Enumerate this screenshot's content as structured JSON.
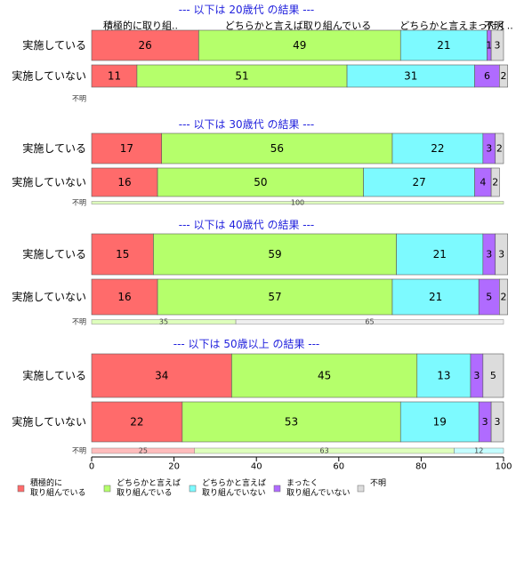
{
  "chart_data": {
    "type": "bar",
    "orientation": "horizontal",
    "stacked": true,
    "xlim": [
      0,
      100
    ],
    "x_ticks": [
      "0",
      "20",
      "40",
      "60",
      "80",
      "100"
    ],
    "series_names": [
      "積極的に取り組んでいる",
      "どちらかと言えば取り組んでいる",
      "どちらかと言えば取り組んでいない",
      "まったく取り組んでいない",
      "不明"
    ],
    "series_colors": [
      "#ff6b6b",
      "#b5ff6b",
      "#7dfaff",
      "#b06bff",
      "#dcdcdc"
    ],
    "top_labels": [
      "積極的に取り組..",
      "どちらかと言えば取り組んでいる",
      "どちらかと言えまったく..",
      "不明"
    ],
    "unknown_label": "不明",
    "legend": {
      "position": "bottom",
      "items": [
        "積極的に\n取り組んでいる",
        "どちらかと言えば\n取り組んでいる",
        "どちらかと言えば\n取り組んでいない",
        "まったく\n取り組んでいない",
        "不明"
      ]
    },
    "groups": [
      {
        "title": "--- 以下は 20歳代 の結果 ---",
        "rows": [
          {
            "label": "実施している",
            "values": [
              26,
              49,
              21,
              1,
              3
            ]
          },
          {
            "label": "実施していない",
            "values": [
              11,
              51,
              31,
              6,
              2
            ]
          }
        ],
        "unknown_bar": []
      },
      {
        "title": "--- 以下は 30歳代 の結果 ---",
        "rows": [
          {
            "label": "実施している",
            "values": [
              17,
              56,
              22,
              3,
              2
            ]
          },
          {
            "label": "実施していない",
            "values": [
              16,
              50,
              27,
              4,
              2
            ]
          }
        ],
        "unknown_bar": [
          0,
          100,
          0,
          0,
          0
        ]
      },
      {
        "title": "--- 以下は 40歳代 の結果 ---",
        "rows": [
          {
            "label": "実施している",
            "values": [
              15,
              59,
              21,
              3,
              3
            ]
          },
          {
            "label": "実施していない",
            "values": [
              16,
              57,
              21,
              5,
              2
            ]
          }
        ],
        "unknown_bar": [
          0,
          35,
          0,
          0,
          65
        ]
      },
      {
        "title": "--- 以下は 50歳以上 の結果 ---",
        "rows": [
          {
            "label": "実施している",
            "values": [
              34,
              45,
              13,
              3,
              5
            ]
          },
          {
            "label": "実施していない",
            "values": [
              22,
              53,
              19,
              3,
              3
            ]
          }
        ],
        "unknown_bar": [
          25,
          63,
          12,
          0,
          0
        ]
      }
    ]
  }
}
